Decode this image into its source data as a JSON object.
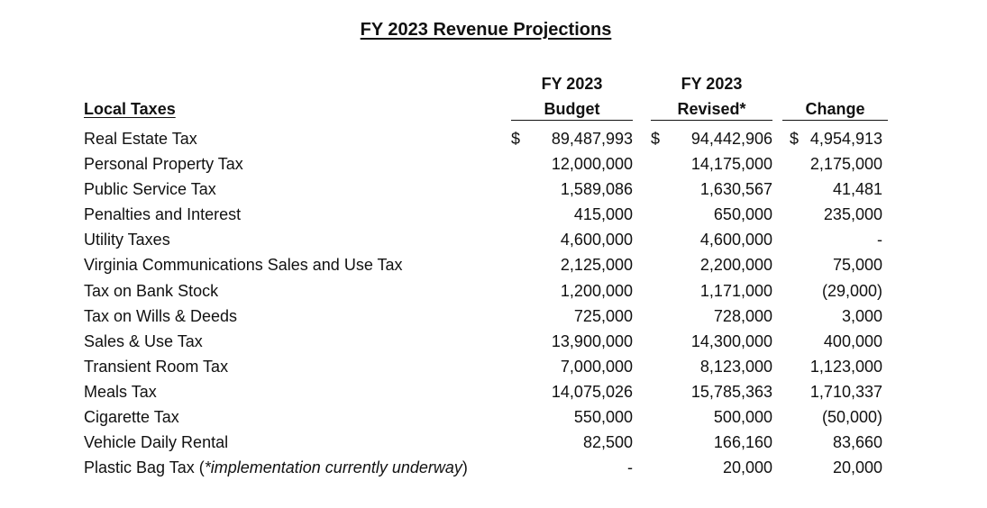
{
  "title": "FY 2023 Revenue Projections",
  "section_label": "Local Taxes",
  "columns": {
    "budget": {
      "line1": "FY 2023",
      "line2": "Budget"
    },
    "revised": {
      "line1": "FY 2023",
      "line2": "Revised*"
    },
    "change": {
      "line2": "Change"
    }
  },
  "currency_symbol": "$",
  "rows": [
    {
      "label": "Real Estate Tax",
      "budget": "89,487,993",
      "revised": "94,442,906",
      "change": "4,954,913"
    },
    {
      "label": "Personal Property Tax",
      "budget": "12,000,000",
      "revised": "14,175,000",
      "change": "2,175,000"
    },
    {
      "label": "Public Service Tax",
      "budget": "1,589,086",
      "revised": "1,630,567",
      "change": "41,481"
    },
    {
      "label": "Penalties and Interest",
      "budget": "415,000",
      "revised": "650,000",
      "change": "235,000"
    },
    {
      "label": "Utility Taxes",
      "budget": "4,600,000",
      "revised": "4,600,000",
      "change": "-"
    },
    {
      "label": "Virginia Communications Sales and Use Tax",
      "budget": "2,125,000",
      "revised": "2,200,000",
      "change": "75,000"
    },
    {
      "label": "Tax on Bank Stock",
      "budget": "1,200,000",
      "revised": "1,171,000",
      "change": "(29,000)"
    },
    {
      "label": "Tax on Wills & Deeds",
      "budget": "725,000",
      "revised": "728,000",
      "change": "3,000"
    },
    {
      "label": "Sales & Use Tax",
      "budget": "13,900,000",
      "revised": "14,300,000",
      "change": "400,000"
    },
    {
      "label": "Transient Room Tax",
      "budget": "7,000,000",
      "revised": "8,123,000",
      "change": "1,123,000"
    },
    {
      "label": "Meals Tax",
      "budget": "14,075,026",
      "revised": "15,785,363",
      "change": "1,710,337"
    },
    {
      "label": "Cigarette Tax",
      "budget": "550,000",
      "revised": "500,000",
      "change": "(50,000)"
    },
    {
      "label": "Vehicle Daily Rental",
      "budget": "82,500",
      "revised": "166,160",
      "change": "83,660"
    },
    {
      "label": "Plastic Bag Tax (",
      "note": "*implementation currently underway",
      "label_end": ")",
      "budget": "-",
      "revised": "20,000",
      "change": "20,000"
    }
  ]
}
